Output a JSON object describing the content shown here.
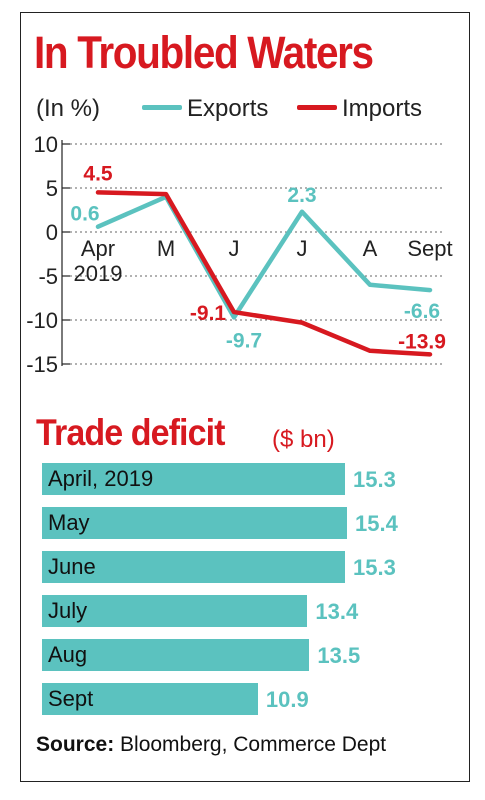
{
  "title": "In Troubled Waters",
  "unit_label": "(In %)",
  "legend": [
    {
      "name": "Exports",
      "color": "#5bc2bf"
    },
    {
      "name": "Imports",
      "color": "#d71920"
    }
  ],
  "chart_data": [
    {
      "type": "line",
      "categories": [
        "Apr\n2019",
        "M",
        "J",
        "J",
        "A",
        "Sept"
      ],
      "ylim": [
        -15,
        10
      ],
      "yticks": [
        "10",
        "5",
        "0",
        "-5",
        "-10",
        "-15"
      ],
      "series": [
        {
          "name": "Exports",
          "color": "#5bc2bf",
          "values": [
            0.6,
            4,
            -9.7,
            2.3,
            -6,
            -6.6
          ]
        },
        {
          "name": "Imports",
          "color": "#d71920",
          "values": [
            4.5,
            4.3,
            -9.1,
            -10.3,
            -13.5,
            -13.9
          ]
        }
      ],
      "data_labels": [
        {
          "series": "Exports",
          "index": 0,
          "text": "0.6"
        },
        {
          "series": "Imports",
          "index": 0,
          "text": "4.5"
        },
        {
          "series": "Imports",
          "index": 2,
          "text": "-9.1"
        },
        {
          "series": "Exports",
          "index": 2,
          "text": "-9.7"
        },
        {
          "series": "Exports",
          "index": 3,
          "text": "2.3"
        },
        {
          "series": "Exports",
          "index": 5,
          "text": "-6.6"
        },
        {
          "series": "Imports",
          "index": 5,
          "text": "-13.9"
        }
      ]
    },
    {
      "type": "bar",
      "title": "Trade deficit",
      "unit": "($ bn)",
      "categories": [
        "April, 2019",
        "May",
        "June",
        "July",
        "Aug",
        "Sept"
      ],
      "values": [
        15.3,
        15.4,
        15.3,
        13.4,
        13.5,
        10.9
      ],
      "color": "#5bc2bf"
    }
  ],
  "source": {
    "label": "Source:",
    "text": " Bloomberg, Commerce Dept"
  }
}
